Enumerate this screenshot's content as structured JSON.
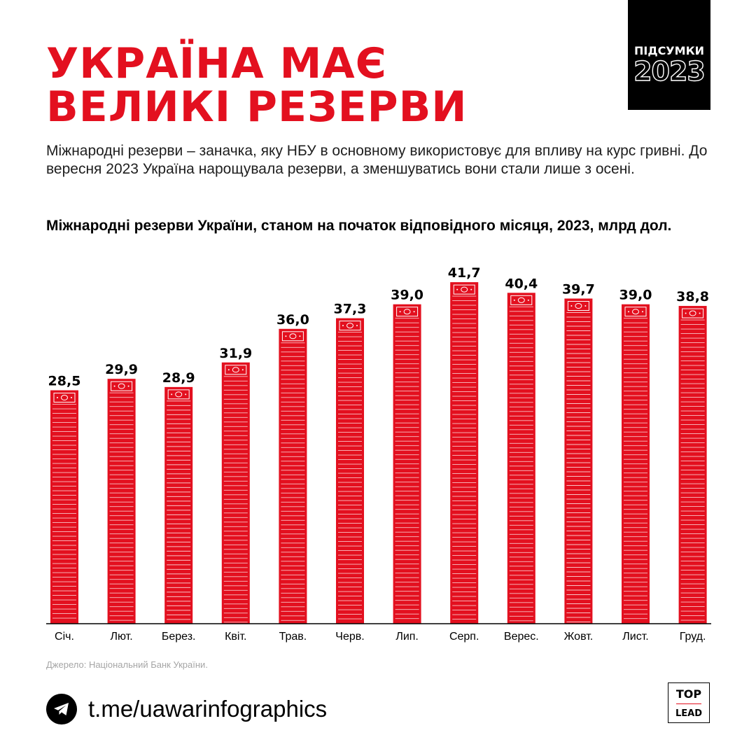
{
  "headline": {
    "line1": "УКРАЇНА МАЄ",
    "line2": "ВЕЛИКІ РЕЗЕРВИ"
  },
  "badge": {
    "label": "ПІДСУМКИ",
    "year": "2023"
  },
  "lead_text": "Міжнародні резерви – заначка, яку НБУ в основному використовує для впливу на курс гривні. До вересня 2023 Україна нарощувала резерви, а зменшуватись вони стали лише з осені.",
  "chart_data": {
    "type": "bar",
    "title": "Міжнародні резерви України, станом на початок відповідного місяця, 2023, млрд дол.",
    "categories": [
      "Січ.",
      "Лют.",
      "Берез.",
      "Квіт.",
      "Трав.",
      "Черв.",
      "Лип.",
      "Серп.",
      "Верес.",
      "Жовт.",
      "Лист.",
      "Груд."
    ],
    "values": [
      28.5,
      29.9,
      28.9,
      31.9,
      36.0,
      37.3,
      39.0,
      41.7,
      40.4,
      39.7,
      39.0,
      38.8
    ],
    "value_labels": [
      "28,5",
      "29,9",
      "28,9",
      "31,9",
      "36,0",
      "37,3",
      "39,0",
      "41,7",
      "40,4",
      "39,7",
      "39,0",
      "38,8"
    ],
    "xlabel": "",
    "ylabel": "",
    "grid": false,
    "bar_color": "#e3101f"
  },
  "source": "Джерело: Національний Банк України.",
  "footer": {
    "icon": "telegram-icon",
    "link_text": "t.me/uawarinfographics"
  },
  "logo": {
    "top": "TOP",
    "bottom": "LEAD"
  },
  "colors": {
    "accent": "#e3101f",
    "text": "#000000",
    "muted": "#a5a5a5"
  }
}
